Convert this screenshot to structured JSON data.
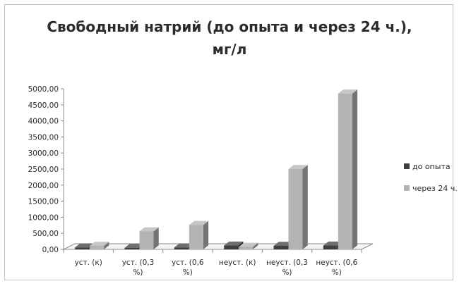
{
  "chart_data": {
    "type": "bar",
    "title_lines": [
      "Свободный натрий (до опыта и через 24 ч.),",
      "мг/л"
    ],
    "categories": [
      [
        "уст. (к)"
      ],
      [
        "уст. (0,3",
        "%)"
      ],
      [
        "уст. (0,6",
        "%)"
      ],
      [
        "неуст. (к)"
      ],
      [
        "неуст. (0,3",
        "%)"
      ],
      [
        "неуст. (0,6",
        "%)"
      ]
    ],
    "series": [
      {
        "name": "до опыта",
        "values": [
          60,
          50,
          60,
          120,
          110,
          120
        ],
        "color": "#3f3f3f"
      },
      {
        "name": "через 24 ч.",
        "values": [
          110,
          560,
          760,
          80,
          2500,
          4850
        ],
        "color": "#b3b3b3"
      }
    ],
    "ylim": [
      0,
      5000
    ],
    "yticks": [
      "0,00",
      "500,00",
      "1000,00",
      "1500,00",
      "2000,00",
      "2500,00",
      "3000,00",
      "3500,00",
      "4000,00",
      "4500,00",
      "5000,00"
    ],
    "ytick_values": [
      0,
      500,
      1000,
      1500,
      2000,
      2500,
      3000,
      3500,
      4000,
      4500,
      5000
    ],
    "legend_position": "right",
    "grid": false,
    "style": "3d-column"
  }
}
